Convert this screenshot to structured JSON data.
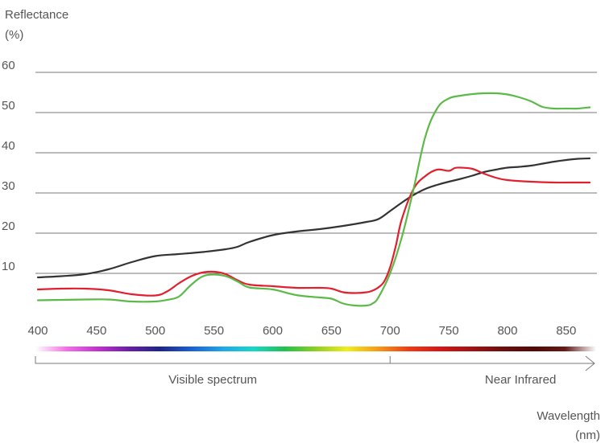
{
  "chart_data": {
    "type": "line",
    "ylabel_line1": "Reflectance",
    "ylabel_line2": "(%)",
    "xlabel_line1": "Wavelength",
    "xlabel_line2": "(nm)",
    "xlim": [
      400,
      870
    ],
    "ylim": [
      0,
      60
    ],
    "yticks": [
      10,
      20,
      30,
      40,
      50,
      60
    ],
    "xticks": [
      400,
      450,
      500,
      550,
      600,
      650,
      700,
      750,
      800,
      850
    ],
    "grid": true,
    "bands": [
      {
        "label": "Visible spectrum",
        "from": 400,
        "to": 700
      },
      {
        "label": "Near Infrared",
        "from": 700,
        "to": 870
      }
    ],
    "series": [
      {
        "color": "#333333",
        "x": [
          400,
          420,
          440,
          460,
          480,
          500,
          520,
          540,
          560,
          570,
          580,
          600,
          620,
          640,
          660,
          680,
          690,
          700,
          710,
          720,
          730,
          740,
          750,
          760,
          770,
          780,
          790,
          800,
          810,
          820,
          830,
          840,
          850,
          860,
          870
        ],
        "y": [
          9,
          9.3,
          9.8,
          11,
          12.8,
          14.3,
          14.8,
          15.3,
          16,
          16.6,
          17.8,
          19.5,
          20.4,
          21,
          21.8,
          22.8,
          23.5,
          25.5,
          27.6,
          29.5,
          31,
          32,
          32.8,
          33.5,
          34.3,
          35.2,
          35.8,
          36.3,
          36.5,
          36.8,
          37.3,
          37.8,
          38.2,
          38.5,
          38.6
        ]
      },
      {
        "color": "#e0202e",
        "x": [
          400,
          420,
          440,
          460,
          480,
          500,
          510,
          520,
          530,
          540,
          550,
          560,
          570,
          580,
          600,
          620,
          640,
          650,
          660,
          670,
          680,
          685,
          690,
          695,
          700,
          705,
          710,
          720,
          730,
          740,
          750,
          755,
          760,
          770,
          780,
          790,
          800,
          820,
          840,
          860,
          870
        ],
        "y": [
          6,
          6.2,
          6.2,
          5.8,
          4.8,
          4.5,
          5.5,
          7.5,
          9.2,
          10.2,
          10.4,
          9.8,
          8.3,
          7.2,
          6.8,
          6.4,
          6.4,
          6.2,
          5.3,
          5.1,
          5.3,
          5.7,
          6.5,
          8,
          11.5,
          17,
          23.5,
          31,
          34.2,
          35.8,
          35.5,
          36.2,
          36.3,
          36,
          34.8,
          33.8,
          33.2,
          32.8,
          32.6,
          32.6,
          32.6
        ]
      },
      {
        "color": "#5bba47",
        "x": [
          400,
          420,
          440,
          460,
          480,
          500,
          510,
          520,
          530,
          540,
          550,
          560,
          570,
          580,
          600,
          620,
          640,
          650,
          660,
          670,
          680,
          685,
          690,
          700,
          710,
          720,
          730,
          740,
          750,
          760,
          770,
          780,
          790,
          800,
          810,
          820,
          830,
          840,
          850,
          860,
          870
        ],
        "y": [
          3.3,
          3.4,
          3.5,
          3.5,
          3,
          3,
          3.4,
          4.2,
          7,
          9.2,
          9.7,
          9.3,
          8,
          6.5,
          6,
          4.6,
          4,
          3.7,
          2.5,
          2,
          2,
          2.5,
          4,
          10,
          19,
          31,
          44,
          51,
          53.5,
          54.2,
          54.6,
          54.8,
          54.8,
          54.5,
          53.8,
          52.8,
          51.4,
          51,
          51,
          51,
          51.3
        ]
      }
    ],
    "spectrum_gradient": [
      "#ffffff",
      "#f46ee6",
      "#c22fd1",
      "#6a1ea6",
      "#1c2587",
      "#1b5fd3",
      "#1ea7e8",
      "#16d7c9",
      "#20c24c",
      "#8cd020",
      "#f0ee1c",
      "#f69a14",
      "#ef3a14",
      "#d51616",
      "#a11312",
      "#6a0f0d",
      "#500a08",
      "#641a16",
      "#ffffff"
    ]
  }
}
